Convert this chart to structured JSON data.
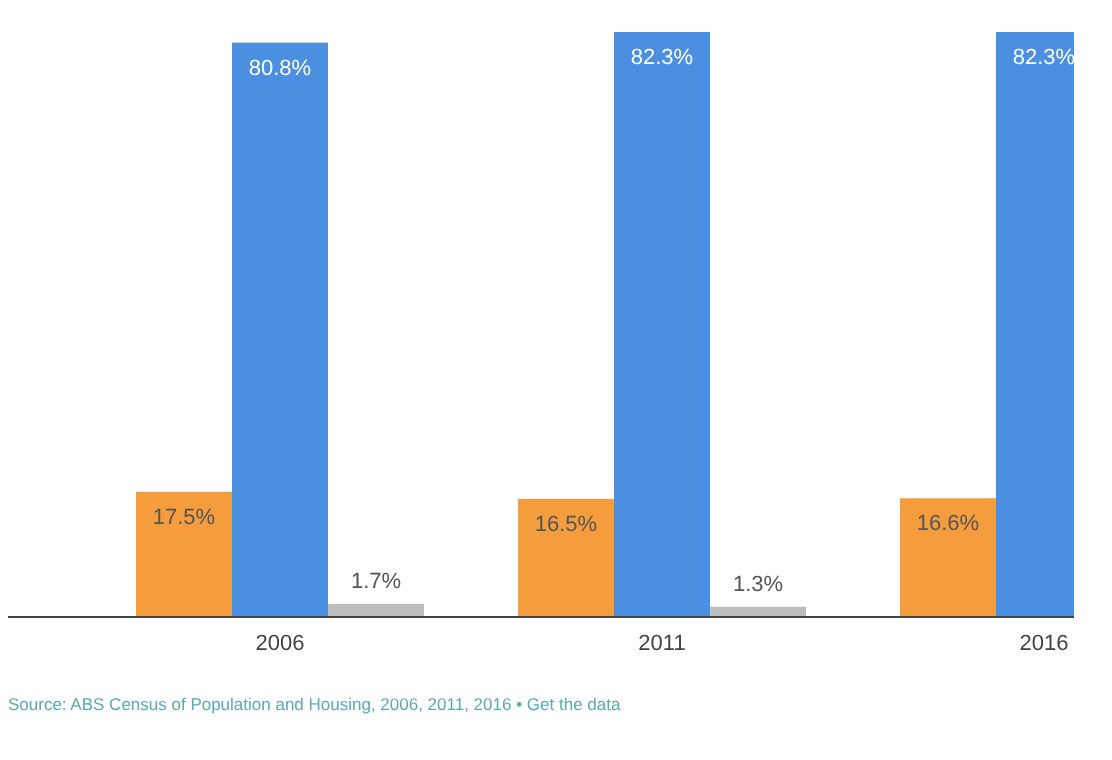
{
  "chart_data": {
    "type": "bar",
    "categories": [
      "2006",
      "2011",
      "2016"
    ],
    "series": [
      {
        "color": "#f59d3d",
        "values": [
          17.5,
          16.5,
          16.6
        ],
        "value_labels": [
          "17.5%",
          "16.5%",
          "16.6%"
        ]
      },
      {
        "color": "#4a8fe0",
        "values": [
          80.8,
          82.3,
          82.3
        ],
        "value_labels": [
          "80.8%",
          "82.3%",
          "82.3%"
        ]
      },
      {
        "color": "#bdbdbd",
        "values": [
          1.7,
          1.3,
          null
        ],
        "value_labels": [
          "1.7%",
          "1.3%",
          null
        ]
      }
    ],
    "annotations": [
      "Source: ABS Census of Population and Housing, 2006, 2011, 2016 • Get the data"
    ]
  }
}
